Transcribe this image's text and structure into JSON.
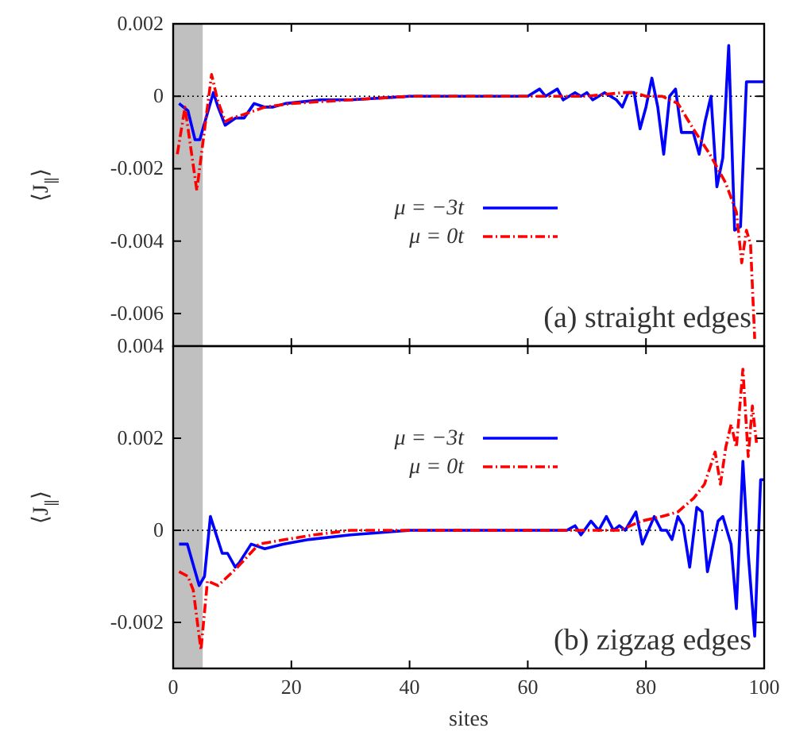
{
  "chart_data": [
    {
      "type": "line",
      "xlim": [
        0,
        100
      ],
      "ylim": [
        -0.0069,
        0.002
      ],
      "xticks": [
        0,
        20,
        40,
        60,
        80,
        100
      ],
      "yticks": [
        -0.006,
        -0.004,
        -0.002,
        0,
        0.002
      ],
      "ylabel": "⟨J$_{∥}$⟩",
      "tick_labels": "y",
      "legend": "left",
      "annotations": [
        "(a) straight edges"
      ],
      "ref_lines": [
        {
          "axis": "y",
          "value": 0,
          "color": "#000000",
          "line_style": "dotted"
        }
      ],
      "bands": [
        {
          "axis": "x",
          "from": 0,
          "to": 5,
          "color": "#c0c0c0"
        }
      ],
      "series": [
        {
          "name": "μ = −3t",
          "color": "#0000ff",
          "line_style": "solid",
          "x": [
            1,
            2.5,
            3.7,
            4.5,
            6.8,
            7.6,
            8.8,
            10.6,
            12,
            13.7,
            15.5,
            16.8,
            19,
            25,
            30,
            40,
            50,
            60,
            62,
            63,
            65,
            66,
            68,
            69,
            70,
            71,
            72,
            73,
            74,
            75,
            76,
            77,
            78,
            79,
            80,
            81,
            82,
            83,
            84,
            85,
            86,
            87,
            88,
            89,
            90,
            91,
            92,
            93,
            94,
            95,
            96,
            97,
            98,
            99,
            100
          ],
          "values": [
            -0.0002,
            -0.0004,
            -0.0012,
            -0.0012,
            0.0001,
            -0.0003,
            -0.0008,
            -0.0006,
            -0.0006,
            -0.0002,
            -0.0003,
            -0.0003,
            -0.0002,
            -0.0001,
            -0.0001,
            0,
            0,
            0,
            0.0002,
            0,
            0.0002,
            -0.0001,
            0.0001,
            0,
            0.0001,
            -0.0001,
            0,
            0.0001,
            0,
            -0.0001,
            -0.0003,
            0.0001,
            0.0001,
            -0.0009,
            -0.0003,
            0.0005,
            -0.0003,
            -0.0016,
            0,
            0.0002,
            -0.001,
            -0.001,
            -0.001,
            -0.0016,
            -0.0007,
            0,
            -0.0025,
            -0.0017,
            0.0014,
            -0.0037,
            -0.0036,
            0.0004,
            0.0004,
            0.0004,
            0.0004
          ]
        },
        {
          "name": "μ = 0t",
          "color": "#ff0000",
          "line_style": "dashdot",
          "x": [
            0.7,
            2,
            4,
            6.5,
            7.5,
            8.8,
            10,
            12,
            15.5,
            20,
            30,
            40,
            50,
            60,
            70,
            76,
            78,
            80,
            82.7,
            85.4,
            88,
            90.8,
            93.5,
            95.3,
            96.2,
            97,
            97.7,
            98.4
          ],
          "values": [
            -0.0016,
            -0.0003,
            -0.0026,
            0.0006,
            -0.0001,
            -0.0007,
            -0.0006,
            -0.0005,
            -0.0003,
            -0.0002,
            -0.0001,
            0,
            0,
            0,
            0,
            0.0001,
            0.0001,
            0,
            0,
            -0.0002,
            -0.0009,
            -0.0016,
            -0.0024,
            -0.0032,
            -0.0046,
            -0.0037,
            -0.0041,
            -0.0067
          ]
        }
      ]
    },
    {
      "type": "line",
      "xlim": [
        0,
        100
      ],
      "ylim": [
        -0.003,
        0.004
      ],
      "xticks": [
        0,
        20,
        40,
        60,
        80,
        100
      ],
      "yticks": [
        -0.002,
        0,
        0.002,
        0.004
      ],
      "xlabel": "sites",
      "ylabel": "⟨J$_{∥}$⟩",
      "legend": "top left",
      "annotations": [
        "(b) zigzag edges"
      ],
      "ref_lines": [
        {
          "axis": "y",
          "value": 0,
          "color": "#000000",
          "line_style": "dotted"
        }
      ],
      "bands": [
        {
          "axis": "x",
          "from": 0,
          "to": 5,
          "color": "#c0c0c0"
        }
      ],
      "series": [
        {
          "name": "μ = −3t",
          "color": "#0000ff",
          "line_style": "solid",
          "x": [
            1,
            2.4,
            4.4,
            5.3,
            6.3,
            8.3,
            9.2,
            10.5,
            11.2,
            13.2,
            15.5,
            18.6,
            23,
            30,
            40,
            50,
            60,
            66.6,
            68,
            69,
            70.7,
            72,
            73.3,
            74.5,
            75.5,
            76.5,
            78.3,
            79.4,
            81.4,
            82.6,
            83.5,
            84.4,
            85.4,
            86.3,
            87.4,
            88.6,
            89.5,
            90.4,
            92.2,
            93,
            94.4,
            95.3,
            96.4,
            97.3,
            98.4,
            99.4,
            100
          ],
          "values": [
            -0.0003,
            -0.0003,
            -0.0012,
            -0.001,
            0.0003,
            -0.0005,
            -0.0005,
            -0.0008,
            -0.0007,
            -0.0003,
            -0.0004,
            -0.0003,
            -0.0002,
            -0.0001,
            0,
            0,
            0,
            0,
            0.0001,
            -0.0001,
            0.0002,
            0,
            0.0003,
            0,
            0.0001,
            0,
            0.0004,
            -0.0003,
            0.0003,
            0,
            0,
            -0.0002,
            0.0003,
            0.0001,
            -0.0008,
            0.0005,
            0.0004,
            -0.0009,
            0.0002,
            0.0003,
            -0.0003,
            -0.0017,
            0.0015,
            -0.0005,
            -0.0023,
            0.0011,
            0.0011
          ]
        },
        {
          "name": "μ = 0t",
          "color": "#ff0000",
          "line_style": "dashdot",
          "x": [
            1,
            2.5,
            3.4,
            4.7,
            5.8,
            7.6,
            10.9,
            14.5,
            19,
            23.8,
            30,
            40,
            50,
            60,
            70,
            75.6,
            79.2,
            82.7,
            85.4,
            88.1,
            89.9,
            91.7,
            92.6,
            93.5,
            94.4,
            95.3,
            96.4,
            97.3,
            98,
            98.7
          ],
          "values": [
            -0.0009,
            -0.001,
            -0.0013,
            -0.0026,
            -0.0011,
            -0.0012,
            -0.0008,
            -0.0003,
            -0.0002,
            -0.0001,
            0,
            0,
            0,
            0,
            0,
            0,
            0.0002,
            0.0003,
            0.0004,
            0.0007,
            0.001,
            0.0017,
            0.001,
            0.0018,
            0.0023,
            0.0018,
            0.0035,
            0.0016,
            0.0027,
            0.0019
          ]
        }
      ]
    }
  ]
}
